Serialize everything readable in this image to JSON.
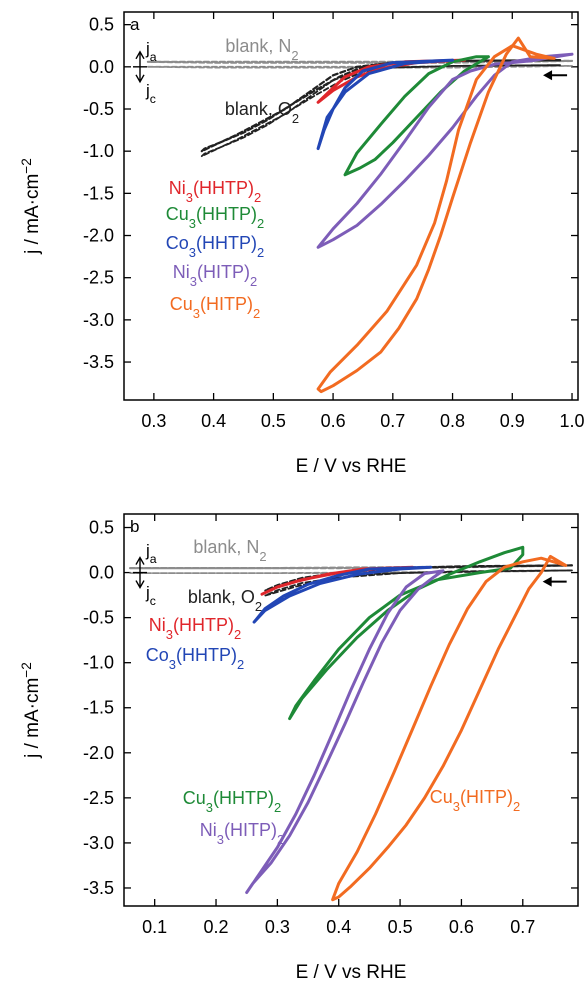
{
  "chart_data": [
    {
      "type": "line",
      "panel_label": "a",
      "xlabel": "E / V vs RHE",
      "ylabel": "j / mA·cm",
      "ylabel_sup": "−2",
      "xlim": [
        0.25,
        1.01
      ],
      "ylim": [
        -3.95,
        0.65
      ],
      "xticks": [
        0.3,
        0.4,
        0.5,
        0.6,
        0.7,
        0.8,
        0.9,
        1.0
      ],
      "yticks": [
        0.5,
        0.0,
        -0.5,
        -1.0,
        -1.5,
        -2.0,
        -2.5,
        -3.0,
        -3.5
      ],
      "xtick_labels": [
        "0.3",
        "0.4",
        "0.5",
        "0.6",
        "0.7",
        "0.8",
        "0.9",
        "1.0"
      ],
      "ytick_labels": [
        "0.5",
        "0.0",
        "-0.5",
        "-1.0",
        "-1.5",
        "-2.0",
        "-2.5",
        "-3.0",
        "-3.5"
      ],
      "direction_labels": {
        "anodic": "j",
        "anodic_sub": "a",
        "cathodic": "j",
        "cathodic_sub": "c"
      },
      "sweep_arrow": {
        "x": 0.985,
        "y": -0.1
      },
      "series": [
        {
          "name": "blank, N",
          "sub": "2",
          "color": "#8c8c8c",
          "dashed": true,
          "x": [
            0.29,
            0.5,
            0.7,
            0.9,
            1.0,
            0.8,
            0.6,
            0.4,
            0.29
          ],
          "y": [
            0.06,
            0.06,
            0.06,
            0.07,
            0.07,
            0.05,
            0.05,
            0.05,
            0.06
          ]
        },
        {
          "name": "blank, O",
          "sub": "2",
          "color": "#222222",
          "dashed": true,
          "x": [
            0.98,
            0.8,
            0.7,
            0.64,
            0.6,
            0.56,
            0.52,
            0.48,
            0.44,
            0.41,
            0.385,
            0.38,
            0.41,
            0.45,
            0.49,
            0.53,
            0.57,
            0.61,
            0.65,
            0.7,
            0.8,
            0.98
          ],
          "y": [
            0.08,
            0.07,
            0.05,
            0.0,
            -0.1,
            -0.3,
            -0.5,
            -0.65,
            -0.8,
            -0.9,
            -0.97,
            -1.0,
            -0.9,
            -0.78,
            -0.63,
            -0.45,
            -0.28,
            -0.12,
            0.0,
            0.05,
            0.07,
            0.08
          ]
        },
        {
          "name": "Ni",
          "sub": "3",
          "tail": "(HHTP)",
          "tail_sub": "2",
          "color": "#e0262b",
          "x": [
            0.82,
            0.72,
            0.66,
            0.62,
            0.6,
            0.575,
            0.6,
            0.64,
            0.68,
            0.74,
            0.82
          ],
          "y": [
            0.08,
            0.06,
            0.0,
            -0.12,
            -0.25,
            -0.42,
            -0.28,
            -0.12,
            -0.02,
            0.05,
            0.08
          ]
        },
        {
          "name": "Cu",
          "sub": "3",
          "tail": "(HHTP)",
          "tail_sub": "2",
          "color": "#1e8a37",
          "x": [
            0.86,
            0.82,
            0.78,
            0.74,
            0.7,
            0.67,
            0.645,
            0.62,
            0.64,
            0.68,
            0.72,
            0.76,
            0.8,
            0.84,
            0.86
          ],
          "y": [
            0.12,
            -0.05,
            -0.3,
            -0.6,
            -0.9,
            -1.1,
            -1.2,
            -1.28,
            -1.02,
            -0.68,
            -0.35,
            -0.08,
            0.06,
            0.12,
            0.12
          ]
        },
        {
          "name": "Co",
          "sub": "3",
          "tail": "(HHTP)",
          "tail_sub": "2",
          "color": "#2246b5",
          "x": [
            0.8,
            0.7,
            0.65,
            0.62,
            0.6,
            0.585,
            0.575,
            0.59,
            0.62,
            0.66,
            0.72,
            0.8
          ],
          "y": [
            0.08,
            0.05,
            -0.05,
            -0.25,
            -0.5,
            -0.75,
            -0.97,
            -0.6,
            -0.3,
            -0.08,
            0.04,
            0.08
          ]
        },
        {
          "name": "Ni",
          "sub": "3",
          "tail": "(HITP)",
          "tail_sub": "2",
          "color": "#7d5db8",
          "x": [
            1.0,
            0.95,
            0.9,
            0.87,
            0.84,
            0.8,
            0.76,
            0.72,
            0.68,
            0.64,
            0.6,
            0.575,
            0.6,
            0.64,
            0.68,
            0.72,
            0.76,
            0.8,
            0.83,
            0.87,
            0.93,
            1.0
          ],
          "y": [
            0.15,
            0.12,
            0.06,
            -0.1,
            -0.35,
            -0.72,
            -1.05,
            -1.35,
            -1.63,
            -1.88,
            -2.05,
            -2.14,
            -1.92,
            -1.62,
            -1.27,
            -0.88,
            -0.48,
            -0.15,
            -0.05,
            0.03,
            0.07,
            0.15
          ]
        },
        {
          "name": "Cu",
          "sub": "3",
          "tail": "(HITP)",
          "tail_sub": "2",
          "color": "#f26b21",
          "x": [
            0.97,
            0.93,
            0.91,
            0.89,
            0.86,
            0.83,
            0.8,
            0.78,
            0.76,
            0.74,
            0.71,
            0.68,
            0.64,
            0.6,
            0.58,
            0.575,
            0.595,
            0.64,
            0.69,
            0.74,
            0.77,
            0.79,
            0.81,
            0.84,
            0.87,
            0.9,
            0.94,
            0.97
          ],
          "y": [
            0.1,
            0.12,
            0.34,
            0.15,
            -0.3,
            -0.9,
            -1.55,
            -2.0,
            -2.4,
            -2.75,
            -3.1,
            -3.38,
            -3.6,
            -3.78,
            -3.85,
            -3.82,
            -3.62,
            -3.3,
            -2.9,
            -2.35,
            -1.85,
            -1.35,
            -0.75,
            -0.15,
            0.12,
            0.25,
            0.15,
            0.1
          ]
        }
      ]
    },
    {
      "type": "line",
      "panel_label": "b",
      "xlabel": "E / V vs RHE",
      "ylabel": "j / mA·cm",
      "ylabel_sup": "−2",
      "xlim": [
        0.05,
        0.79
      ],
      "ylim": [
        -3.7,
        0.65
      ],
      "xticks": [
        0.1,
        0.2,
        0.3,
        0.4,
        0.5,
        0.6,
        0.7
      ],
      "yticks": [
        0.5,
        0.0,
        -0.5,
        -1.0,
        -1.5,
        -2.0,
        -2.5,
        -3.0,
        -3.5
      ],
      "xtick_labels": [
        "0.1",
        "0.2",
        "0.3",
        "0.4",
        "0.5",
        "0.6",
        "0.7"
      ],
      "ytick_labels": [
        "0.5",
        "0.0",
        "-0.5",
        "-1.0",
        "-1.5",
        "-2.0",
        "-2.5",
        "-3.0",
        "-3.5"
      ],
      "direction_labels": {
        "anodic": "j",
        "anodic_sub": "a",
        "cathodic": "j",
        "cathodic_sub": "c"
      },
      "sweep_arrow": {
        "x": 0.765,
        "y": -0.1
      },
      "series": [
        {
          "name": "blank, N",
          "sub": "2",
          "color": "#8c8c8c",
          "dashed": true,
          "x": [
            0.06,
            0.3,
            0.5,
            0.7,
            0.78,
            0.6,
            0.4,
            0.2,
            0.06
          ],
          "y": [
            0.05,
            0.05,
            0.06,
            0.07,
            0.08,
            0.06,
            0.05,
            0.05,
            0.05
          ]
        },
        {
          "name": "blank, O",
          "sub": "2",
          "color": "#222222",
          "dashed": true,
          "x": [
            0.78,
            0.6,
            0.45,
            0.38,
            0.33,
            0.3,
            0.28,
            0.3,
            0.34,
            0.4,
            0.5,
            0.65,
            0.78
          ],
          "y": [
            0.08,
            0.07,
            0.04,
            -0.02,
            -0.1,
            -0.16,
            -0.2,
            -0.14,
            -0.06,
            0.0,
            0.05,
            0.07,
            0.08
          ]
        },
        {
          "name": "Ni",
          "sub": "3",
          "tail": "(HHTP)",
          "tail_sub": "2",
          "color": "#e0262b",
          "x": [
            0.52,
            0.44,
            0.38,
            0.33,
            0.3,
            0.275,
            0.3,
            0.34,
            0.4,
            0.46,
            0.52
          ],
          "y": [
            0.06,
            0.04,
            -0.02,
            -0.1,
            -0.16,
            -0.24,
            -0.16,
            -0.08,
            0.0,
            0.04,
            0.06
          ]
        },
        {
          "name": "Co",
          "sub": "3",
          "tail": "(HHTP)",
          "tail_sub": "2",
          "color": "#2246b5",
          "x": [
            0.55,
            0.45,
            0.4,
            0.35,
            0.31,
            0.28,
            0.262,
            0.28,
            0.32,
            0.37,
            0.43,
            0.5,
            0.55
          ],
          "y": [
            0.06,
            0.04,
            -0.03,
            -0.13,
            -0.26,
            -0.4,
            -0.55,
            -0.42,
            -0.26,
            -0.12,
            -0.02,
            0.04,
            0.06
          ]
        },
        {
          "name": "Cu",
          "sub": "3",
          "tail": "(HHTP)",
          "tail_sub": "2",
          "color": "#1e8a37",
          "x": [
            0.68,
            0.63,
            0.56,
            0.5,
            0.45,
            0.4,
            0.36,
            0.33,
            0.32,
            0.34,
            0.38,
            0.43,
            0.48,
            0.53,
            0.58,
            0.63,
            0.67,
            0.7,
            0.7,
            0.68
          ],
          "y": [
            0.05,
            0.0,
            -0.08,
            -0.25,
            -0.5,
            -0.85,
            -1.2,
            -1.48,
            -1.62,
            -1.4,
            -1.08,
            -0.72,
            -0.42,
            -0.18,
            -0.02,
            0.12,
            0.22,
            0.28,
            0.2,
            0.05
          ]
        },
        {
          "name": "Ni",
          "sub": "3",
          "tail": "(HITP)",
          "tail_sub": "2",
          "color": "#7d5db8",
          "x": [
            0.57,
            0.555,
            0.53,
            0.5,
            0.47,
            0.44,
            0.41,
            0.38,
            0.35,
            0.32,
            0.29,
            0.26,
            0.25,
            0.27,
            0.3,
            0.33,
            0.36,
            0.39,
            0.42,
            0.45,
            0.48,
            0.51,
            0.54,
            0.57
          ],
          "y": [
            0.02,
            -0.05,
            -0.18,
            -0.42,
            -0.78,
            -1.22,
            -1.68,
            -2.12,
            -2.55,
            -2.92,
            -3.22,
            -3.45,
            -3.55,
            -3.35,
            -3.05,
            -2.68,
            -2.25,
            -1.78,
            -1.3,
            -0.85,
            -0.45,
            -0.16,
            -0.01,
            0.02
          ]
        },
        {
          "name": "Cu",
          "sub": "3",
          "tail": "(HITP)",
          "tail_sub": "2",
          "color": "#f26b21",
          "x": [
            0.77,
            0.745,
            0.73,
            0.71,
            0.69,
            0.66,
            0.63,
            0.6,
            0.57,
            0.54,
            0.51,
            0.48,
            0.45,
            0.42,
            0.4,
            0.39,
            0.4,
            0.43,
            0.46,
            0.49,
            0.52,
            0.55,
            0.58,
            0.61,
            0.64,
            0.67,
            0.7,
            0.73,
            0.75,
            0.77
          ],
          "y": [
            0.08,
            0.18,
            0.0,
            -0.18,
            -0.45,
            -0.85,
            -1.3,
            -1.75,
            -2.15,
            -2.5,
            -2.8,
            -3.05,
            -3.28,
            -3.48,
            -3.6,
            -3.63,
            -3.45,
            -3.1,
            -2.68,
            -2.22,
            -1.74,
            -1.26,
            -0.8,
            -0.4,
            -0.1,
            0.06,
            0.12,
            0.16,
            0.12,
            0.08
          ]
        }
      ]
    }
  ]
}
